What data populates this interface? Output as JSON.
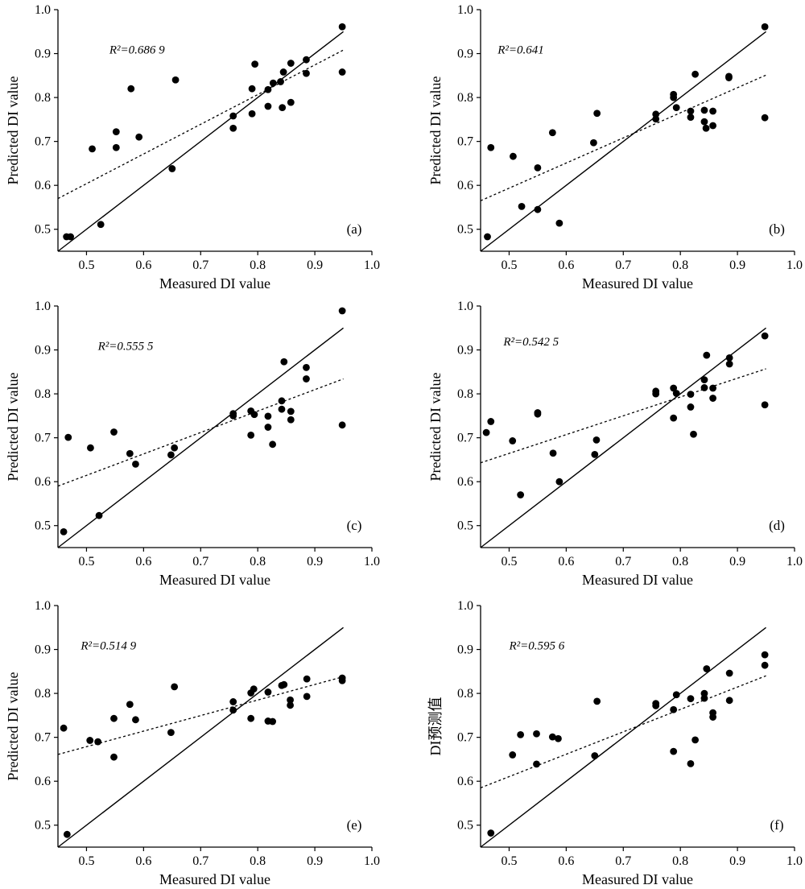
{
  "chart_data": [
    {
      "type": "scatter",
      "panel_label": "(a)",
      "xlabel": "Measured DI value",
      "ylabel": "Predicted DI value",
      "xlim": [
        0.45,
        1.0
      ],
      "ylim": [
        0.45,
        1.0
      ],
      "xticks": [
        "0.5",
        "0.6",
        "0.7",
        "0.8",
        "0.9",
        "1.0"
      ],
      "yticks": [
        "0.5",
        "0.6",
        "0.7",
        "0.8",
        "0.9",
        "1.0"
      ],
      "r2_label": "R²=0.686 9",
      "grid": false,
      "points": [
        [
          0.465,
          0.483
        ],
        [
          0.472,
          0.483
        ],
        [
          0.525,
          0.511
        ],
        [
          0.51,
          0.683
        ],
        [
          0.552,
          0.686
        ],
        [
          0.552,
          0.722
        ],
        [
          0.578,
          0.82
        ],
        [
          0.592,
          0.71
        ],
        [
          0.65,
          0.638
        ],
        [
          0.656,
          0.84
        ],
        [
          0.757,
          0.758
        ],
        [
          0.757,
          0.73
        ],
        [
          0.79,
          0.763
        ],
        [
          0.79,
          0.82
        ],
        [
          0.795,
          0.876
        ],
        [
          0.818,
          0.818
        ],
        [
          0.818,
          0.78
        ],
        [
          0.827,
          0.833
        ],
        [
          0.84,
          0.836
        ],
        [
          0.843,
          0.777
        ],
        [
          0.845,
          0.858
        ],
        [
          0.858,
          0.878
        ],
        [
          0.858,
          0.789
        ],
        [
          0.885,
          0.886
        ],
        [
          0.885,
          0.855
        ],
        [
          0.948,
          0.961
        ],
        [
          0.948,
          0.858
        ]
      ],
      "identity_line": [
        [
          0.45,
          0.45
        ],
        [
          0.95,
          0.95
        ]
      ],
      "fit_line": [
        [
          0.45,
          0.57
        ],
        [
          0.95,
          0.908
        ]
      ]
    },
    {
      "type": "scatter",
      "panel_label": "(b)",
      "xlabel": "Measured DI value",
      "ylabel": "Predicted DI value",
      "xlim": [
        0.45,
        1.0
      ],
      "ylim": [
        0.45,
        1.0
      ],
      "xticks": [
        "0.5",
        "0.6",
        "0.7",
        "0.8",
        "0.9",
        "1.0"
      ],
      "yticks": [
        "0.5",
        "0.6",
        "0.7",
        "0.8",
        "0.9",
        "1.0"
      ],
      "r2_label": "R²=0.641",
      "grid": false,
      "points": [
        [
          0.462,
          0.483
        ],
        [
          0.468,
          0.686
        ],
        [
          0.507,
          0.666
        ],
        [
          0.522,
          0.552
        ],
        [
          0.55,
          0.64
        ],
        [
          0.55,
          0.545
        ],
        [
          0.576,
          0.72
        ],
        [
          0.588,
          0.514
        ],
        [
          0.648,
          0.697
        ],
        [
          0.654,
          0.764
        ],
        [
          0.757,
          0.762
        ],
        [
          0.757,
          0.751
        ],
        [
          0.788,
          0.807
        ],
        [
          0.788,
          0.8
        ],
        [
          0.793,
          0.777
        ],
        [
          0.818,
          0.769
        ],
        [
          0.818,
          0.755
        ],
        [
          0.826,
          0.853
        ],
        [
          0.842,
          0.771
        ],
        [
          0.842,
          0.745
        ],
        [
          0.845,
          0.73
        ],
        [
          0.857,
          0.769
        ],
        [
          0.857,
          0.736
        ],
        [
          0.885,
          0.848
        ],
        [
          0.885,
          0.845
        ],
        [
          0.948,
          0.961
        ],
        [
          0.948,
          0.754
        ]
      ],
      "identity_line": [
        [
          0.45,
          0.45
        ],
        [
          0.95,
          0.95
        ]
      ],
      "fit_line": [
        [
          0.45,
          0.565
        ],
        [
          0.95,
          0.851
        ]
      ]
    },
    {
      "type": "scatter",
      "panel_label": "(c)",
      "xlabel": "Measured DI value",
      "ylabel": "Predicted DI value",
      "xlim": [
        0.45,
        1.0
      ],
      "ylim": [
        0.45,
        1.0
      ],
      "xticks": [
        "0.5",
        "0.6",
        "0.7",
        "0.8",
        "0.9",
        "1.0"
      ],
      "yticks": [
        "0.5",
        "0.6",
        "0.7",
        "0.8",
        "0.9",
        "1.0"
      ],
      "r2_label": "R²=0.555 5",
      "grid": false,
      "points": [
        [
          0.46,
          0.486
        ],
        [
          0.468,
          0.701
        ],
        [
          0.507,
          0.677
        ],
        [
          0.522,
          0.523
        ],
        [
          0.548,
          0.713
        ],
        [
          0.576,
          0.664
        ],
        [
          0.586,
          0.64
        ],
        [
          0.648,
          0.661
        ],
        [
          0.654,
          0.677
        ],
        [
          0.757,
          0.755
        ],
        [
          0.757,
          0.75
        ],
        [
          0.788,
          0.761
        ],
        [
          0.788,
          0.706
        ],
        [
          0.794,
          0.753
        ],
        [
          0.818,
          0.749
        ],
        [
          0.818,
          0.724
        ],
        [
          0.826,
          0.685
        ],
        [
          0.842,
          0.784
        ],
        [
          0.842,
          0.765
        ],
        [
          0.846,
          0.873
        ],
        [
          0.858,
          0.76
        ],
        [
          0.858,
          0.741
        ],
        [
          0.885,
          0.86
        ],
        [
          0.885,
          0.834
        ],
        [
          0.948,
          0.989
        ],
        [
          0.948,
          0.729
        ]
      ],
      "identity_line": [
        [
          0.45,
          0.45
        ],
        [
          0.95,
          0.95
        ]
      ],
      "fit_line": [
        [
          0.45,
          0.59
        ],
        [
          0.95,
          0.834
        ]
      ]
    },
    {
      "type": "scatter",
      "panel_label": "(d)",
      "xlabel": "Measured DI value",
      "ylabel": "Predicted DI value",
      "xlim": [
        0.45,
        1.0
      ],
      "ylim": [
        0.45,
        1.0
      ],
      "xticks": [
        "0.5",
        "0.6",
        "0.7",
        "0.8",
        "0.9",
        "1.0"
      ],
      "yticks": [
        "0.5",
        "0.6",
        "0.7",
        "0.8",
        "0.9",
        "1.0"
      ],
      "r2_label": "R²=0.542 5",
      "grid": false,
      "points": [
        [
          0.46,
          0.712
        ],
        [
          0.468,
          0.737
        ],
        [
          0.506,
          0.693
        ],
        [
          0.52,
          0.57
        ],
        [
          0.55,
          0.757
        ],
        [
          0.55,
          0.754
        ],
        [
          0.577,
          0.665
        ],
        [
          0.588,
          0.6
        ],
        [
          0.65,
          0.662
        ],
        [
          0.653,
          0.695
        ],
        [
          0.757,
          0.806
        ],
        [
          0.757,
          0.8
        ],
        [
          0.788,
          0.813
        ],
        [
          0.788,
          0.745
        ],
        [
          0.793,
          0.801
        ],
        [
          0.818,
          0.799
        ],
        [
          0.818,
          0.77
        ],
        [
          0.823,
          0.708
        ],
        [
          0.842,
          0.832
        ],
        [
          0.842,
          0.814
        ],
        [
          0.846,
          0.888
        ],
        [
          0.857,
          0.813
        ],
        [
          0.857,
          0.79
        ],
        [
          0.886,
          0.882
        ],
        [
          0.886,
          0.868
        ],
        [
          0.948,
          0.932
        ],
        [
          0.948,
          0.775
        ]
      ],
      "identity_line": [
        [
          0.45,
          0.45
        ],
        [
          0.95,
          0.95
        ]
      ],
      "fit_line": [
        [
          0.45,
          0.643
        ],
        [
          0.95,
          0.857
        ]
      ]
    },
    {
      "type": "scatter",
      "panel_label": "(e)",
      "xlabel": "Measured DI value",
      "ylabel": "Predicted DI value",
      "xlim": [
        0.45,
        1.0
      ],
      "ylim": [
        0.45,
        1.0
      ],
      "xticks": [
        "0.5",
        "0.6",
        "0.7",
        "0.8",
        "0.9",
        "1.0"
      ],
      "yticks": [
        "0.5",
        "0.6",
        "0.7",
        "0.8",
        "0.9",
        "1.0"
      ],
      "r2_label": "R²=0.514 9",
      "grid": false,
      "points": [
        [
          0.46,
          0.721
        ],
        [
          0.466,
          0.479
        ],
        [
          0.506,
          0.693
        ],
        [
          0.52,
          0.69
        ],
        [
          0.548,
          0.743
        ],
        [
          0.548,
          0.655
        ],
        [
          0.576,
          0.775
        ],
        [
          0.586,
          0.74
        ],
        [
          0.648,
          0.711
        ],
        [
          0.654,
          0.815
        ],
        [
          0.757,
          0.781
        ],
        [
          0.757,
          0.762
        ],
        [
          0.788,
          0.801
        ],
        [
          0.788,
          0.743
        ],
        [
          0.793,
          0.81
        ],
        [
          0.818,
          0.803
        ],
        [
          0.818,
          0.737
        ],
        [
          0.826,
          0.736
        ],
        [
          0.842,
          0.818
        ],
        [
          0.846,
          0.82
        ],
        [
          0.857,
          0.785
        ],
        [
          0.857,
          0.773
        ],
        [
          0.886,
          0.833
        ],
        [
          0.886,
          0.793
        ],
        [
          0.948,
          0.835
        ],
        [
          0.948,
          0.829
        ]
      ],
      "identity_line": [
        [
          0.45,
          0.45
        ],
        [
          0.95,
          0.95
        ]
      ],
      "fit_line": [
        [
          0.45,
          0.661
        ],
        [
          0.95,
          0.838
        ]
      ]
    },
    {
      "type": "scatter",
      "panel_label": "(f)",
      "xlabel": "Measured DI value",
      "ylabel": "DI预测值",
      "xlim": [
        0.45,
        1.0
      ],
      "ylim": [
        0.45,
        1.0
      ],
      "xticks": [
        "0.5",
        "0.6",
        "0.7",
        "0.8",
        "0.9",
        "1.0"
      ],
      "yticks": [
        "0.5",
        "0.6",
        "0.7",
        "0.8",
        "0.9",
        "1.0"
      ],
      "r2_label": "R²=0.595 6",
      "grid": false,
      "points": [
        [
          0.468,
          0.482
        ],
        [
          0.506,
          0.66
        ],
        [
          0.52,
          0.706
        ],
        [
          0.548,
          0.708
        ],
        [
          0.548,
          0.639
        ],
        [
          0.576,
          0.701
        ],
        [
          0.586,
          0.697
        ],
        [
          0.65,
          0.658
        ],
        [
          0.654,
          0.782
        ],
        [
          0.757,
          0.777
        ],
        [
          0.757,
          0.772
        ],
        [
          0.788,
          0.763
        ],
        [
          0.788,
          0.668
        ],
        [
          0.793,
          0.797
        ],
        [
          0.818,
          0.788
        ],
        [
          0.818,
          0.64
        ],
        [
          0.826,
          0.694
        ],
        [
          0.842,
          0.8
        ],
        [
          0.842,
          0.789
        ],
        [
          0.846,
          0.856
        ],
        [
          0.857,
          0.756
        ],
        [
          0.857,
          0.746
        ],
        [
          0.886,
          0.846
        ],
        [
          0.886,
          0.784
        ],
        [
          0.948,
          0.888
        ],
        [
          0.948,
          0.864
        ]
      ],
      "identity_line": [
        [
          0.45,
          0.45
        ],
        [
          0.95,
          0.95
        ]
      ],
      "fit_line": [
        [
          0.45,
          0.585
        ],
        [
          0.95,
          0.84
        ]
      ]
    }
  ]
}
